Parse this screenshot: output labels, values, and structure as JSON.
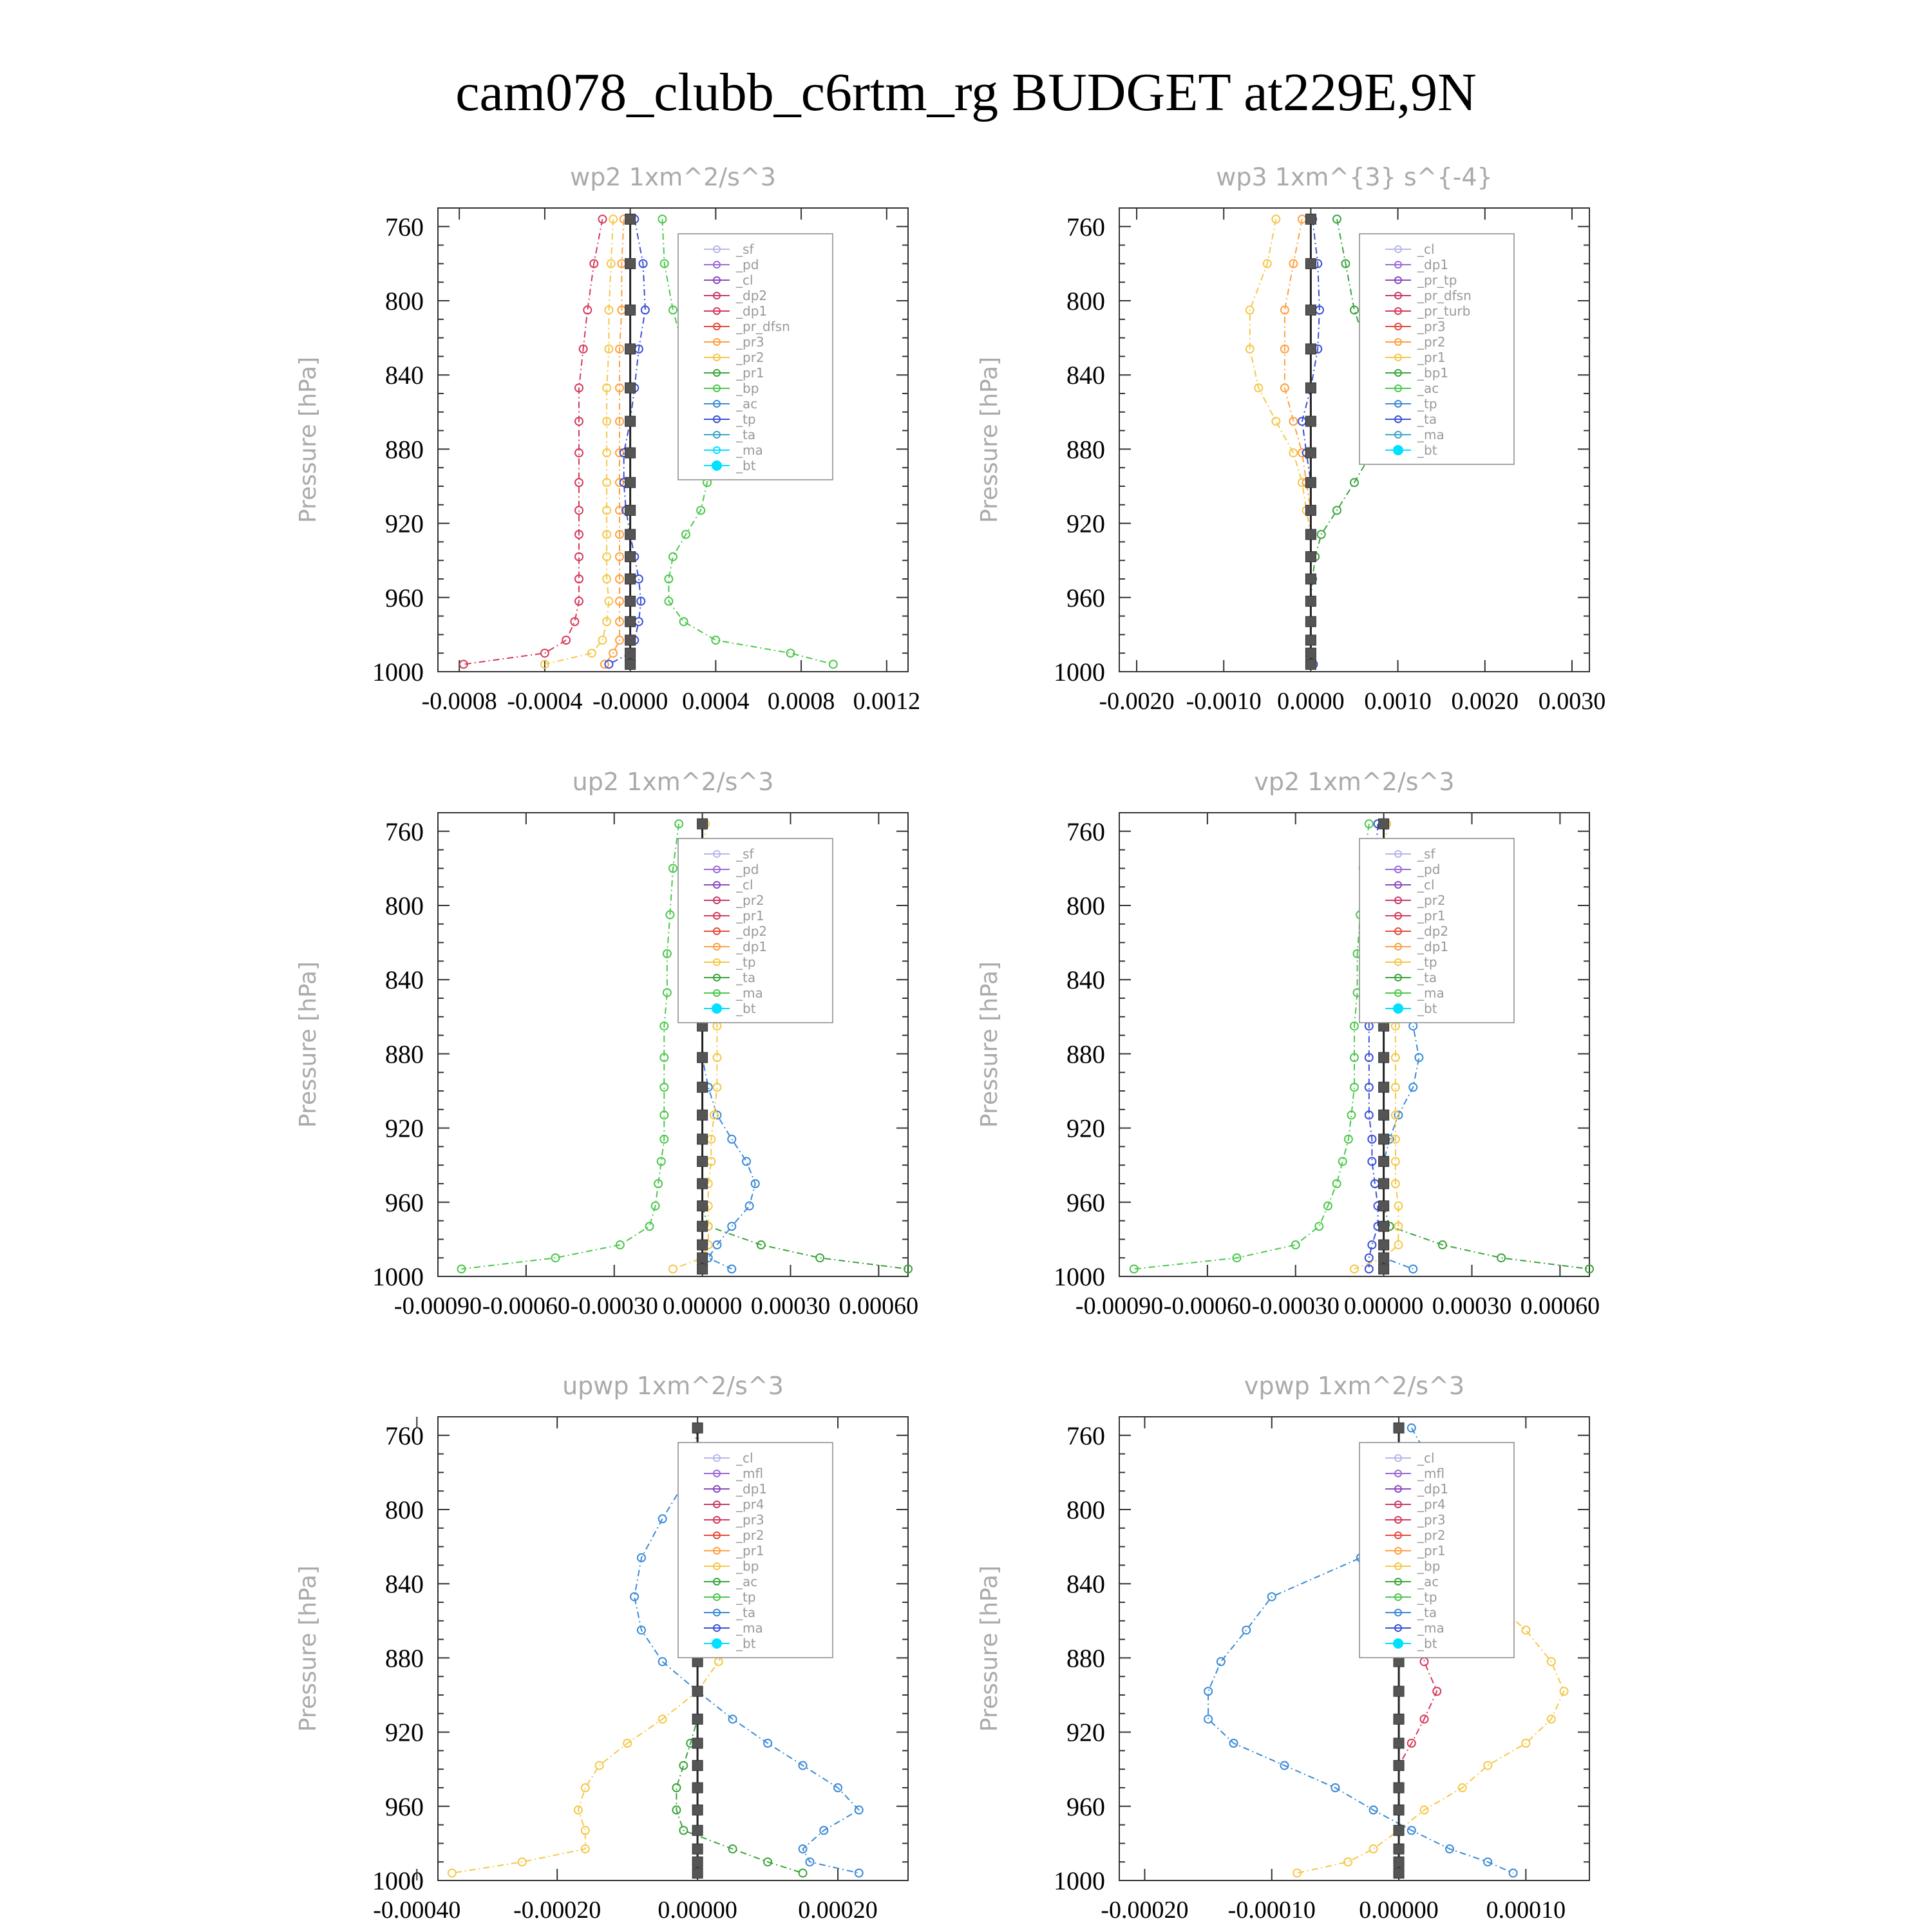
{
  "page": {
    "title": "cam078_clubb_c6rtm_rg  BUDGET at229E,9N"
  },
  "chart_data": [
    {
      "type": "line",
      "title": "wp2   1xm^2/s^3",
      "ylabel": "Pressure  [hPa]",
      "xlim": [
        -0.0009,
        0.0013
      ],
      "ylim": [
        750,
        1000
      ],
      "xticks": [
        "-0.0008",
        "-0.0004",
        "-0.0000",
        "0.0004",
        "0.0008",
        "0.0012"
      ],
      "xtick_values": [
        -0.0008,
        -0.0004,
        0,
        0.0004,
        0.0008,
        0.0012
      ],
      "yticks": [
        "760",
        "800",
        "840",
        "880",
        "920",
        "960",
        "1000"
      ],
      "pressure": [
        756,
        780,
        805,
        826,
        847,
        865,
        882,
        898,
        913,
        926,
        938,
        950,
        962,
        973,
        983,
        990,
        996
      ],
      "legend": [
        "_sf",
        "_pd",
        "_cl",
        "_dp2",
        "_dp1",
        "_pr_dfsn",
        "_pr3",
        "_pr2",
        "_pr1",
        "_bp",
        "_ac",
        "_tp",
        "_ta",
        "_ma",
        "_bt"
      ],
      "series": [
        {
          "name": "_dp1",
          "color": "#d63a5a",
          "values": [
            -0.00013,
            -0.00017,
            -0.0002,
            -0.00022,
            -0.00024,
            -0.00024,
            -0.00024,
            -0.00024,
            -0.00024,
            -0.00024,
            -0.00024,
            -0.00024,
            -0.00024,
            -0.00026,
            -0.0003,
            -0.0004,
            -0.00078
          ]
        },
        {
          "name": "_pr1",
          "color": "#f4c84a",
          "values": [
            -8e-05,
            -9e-05,
            -0.0001,
            -0.0001,
            -0.00011,
            -0.00011,
            -0.00011,
            -0.00011,
            -0.00011,
            -0.00011,
            -0.00011,
            -0.00011,
            -0.0001,
            -0.00011,
            -0.00013,
            -0.00018,
            -0.0004
          ]
        },
        {
          "name": "_pr3",
          "color": "#ffa040",
          "values": [
            -3e-05,
            -4e-05,
            -4e-05,
            -5e-05,
            -5e-05,
            -5e-05,
            -5e-05,
            -5e-05,
            -5e-05,
            -5e-05,
            -5e-05,
            -5e-05,
            -5e-05,
            -5e-05,
            -5e-05,
            -8e-05,
            -0.00012
          ]
        },
        {
          "name": "_bp",
          "color": "#4cc84c",
          "values": [
            0.00015,
            0.00016,
            0.0002,
            0.00025,
            0.00033,
            0.00037,
            0.00038,
            0.00036,
            0.00033,
            0.00026,
            0.0002,
            0.00018,
            0.00018,
            0.00025,
            0.0004,
            0.00075,
            0.00095
          ]
        },
        {
          "name": "_ta",
          "color": "#3a50d6",
          "values": [
            2e-05,
            6e-05,
            7e-05,
            4e-05,
            2e-05,
            0.0,
            -3e-05,
            -3e-05,
            -2e-05,
            0.0,
            2e-05,
            4e-05,
            5e-05,
            4e-05,
            2e-05,
            0.0,
            -0.0001
          ]
        },
        {
          "name": "_bt",
          "color": "#222222",
          "values": [
            0,
            0,
            0,
            0,
            0,
            0,
            0,
            0,
            0,
            0,
            0,
            0,
            0,
            0,
            0,
            0,
            0
          ]
        }
      ]
    },
    {
      "type": "line",
      "title": "wp3   1xm^{3} s^{-4}",
      "ylabel": "Pressure  [hPa]",
      "xlim": [
        -0.0022,
        0.0032
      ],
      "ylim": [
        750,
        1000
      ],
      "xticks": [
        "-0.0020",
        "-0.0010",
        "0.0000",
        "0.0010",
        "0.0020",
        "0.0030"
      ],
      "xtick_values": [
        -0.002,
        -0.001,
        0,
        0.001,
        0.002,
        0.003
      ],
      "yticks": [
        "760",
        "800",
        "840",
        "880",
        "920",
        "960",
        "1000"
      ],
      "pressure": [
        756,
        780,
        805,
        826,
        847,
        865,
        882,
        898,
        913,
        926,
        938,
        950,
        962,
        973,
        983,
        990,
        996
      ],
      "legend": [
        "_cl",
        "_dp1",
        "_pr_tp",
        "_pr_dfsn",
        "_pr_turb",
        "_pr3",
        "_pr2",
        "_pr1",
        "_bp1",
        "_ac",
        "_tp",
        "_ta",
        "_ma",
        "_bt"
      ],
      "series": [
        {
          "name": "_pr1",
          "color": "#f4c84a",
          "values": [
            -0.0004,
            -0.0005,
            -0.0007,
            -0.0007,
            -0.0006,
            -0.0004,
            -0.0002,
            -0.0001,
            -5e-05,
            0,
            0,
            0,
            0,
            0,
            0,
            0,
            0
          ]
        },
        {
          "name": "_pr2",
          "color": "#ffa040",
          "values": [
            -0.0001,
            -0.0002,
            -0.0003,
            -0.0003,
            -0.0003,
            -0.0002,
            -0.0001,
            -5e-05,
            0,
            0,
            0,
            0,
            0,
            0,
            0,
            0,
            0
          ]
        },
        {
          "name": "_bp1",
          "color": "#3aa43a",
          "values": [
            0.0003,
            0.0004,
            0.0005,
            0.00065,
            0.0008,
            0.0008,
            0.0007,
            0.0005,
            0.0003,
            0.00012,
            5e-05,
            2e-05,
            0,
            0,
            0,
            0,
            0
          ]
        },
        {
          "name": "_ta",
          "color": "#3a50d6",
          "values": [
            2e-05,
            8e-05,
            0.0001,
            8e-05,
            0.0,
            -0.0001,
            -5e-05,
            0,
            0,
            0,
            0,
            0,
            0,
            0,
            0,
            0,
            3e-05
          ]
        },
        {
          "name": "_bt",
          "color": "#222222",
          "values": [
            0,
            0,
            0,
            0,
            0,
            0,
            0,
            0,
            0,
            0,
            0,
            0,
            0,
            0,
            0,
            0,
            0
          ]
        }
      ]
    },
    {
      "type": "line",
      "title": "up2   1xm^2/s^3",
      "ylabel": "Pressure  [hPa]",
      "xlim": [
        -0.0009,
        0.0007
      ],
      "ylim": [
        750,
        1000
      ],
      "xticks": [
        "-0.00090",
        "-0.00060",
        "-0.00030",
        "0.00000",
        "0.00030",
        "0.00060"
      ],
      "xtick_values": [
        -0.0009,
        -0.0006,
        -0.0003,
        0,
        0.0003,
        0.0006
      ],
      "yticks": [
        "760",
        "800",
        "840",
        "880",
        "920",
        "960",
        "1000"
      ],
      "pressure": [
        756,
        780,
        805,
        826,
        847,
        865,
        882,
        898,
        913,
        926,
        938,
        950,
        962,
        973,
        983,
        990,
        996
      ],
      "legend": [
        "_sf",
        "_pd",
        "_cl",
        "_pr2",
        "_pr1",
        "_dp2",
        "_dp1",
        "_tp",
        "_ta",
        "_ma",
        "_bt"
      ],
      "series": [
        {
          "name": "_dp1",
          "color": "#4cc84c",
          "values": [
            -8e-05,
            -0.0001,
            -0.00011,
            -0.00012,
            -0.00012,
            -0.00013,
            -0.00013,
            -0.00013,
            -0.00013,
            -0.00013,
            -0.00014,
            -0.00015,
            -0.00016,
            -0.00018,
            -0.00028,
            -0.0005,
            -0.00082
          ]
        },
        {
          "name": "_dp2",
          "color": "#3aa43a",
          "values": [
            0,
            0,
            0,
            0,
            0,
            0,
            0,
            0,
            0,
            0,
            0,
            0,
            0,
            2e-05,
            0.0002,
            0.0004,
            0.0007
          ]
        },
        {
          "name": "_tp",
          "color": "#3a8ad6",
          "values": [
            0,
            0,
            0,
            0,
            0,
            0,
            0,
            2e-05,
            5e-05,
            0.0001,
            0.00015,
            0.00018,
            0.00016,
            0.0001,
            5e-05,
            2e-05,
            0.0001
          ]
        },
        {
          "name": "_pr1",
          "color": "#f4c84a",
          "values": [
            1e-05,
            1e-05,
            2e-05,
            3e-05,
            4e-05,
            5e-05,
            5e-05,
            5e-05,
            4e-05,
            3e-05,
            3e-05,
            2e-05,
            2e-05,
            2e-05,
            2e-05,
            0,
            -0.0001
          ]
        },
        {
          "name": "_bt",
          "color": "#222222",
          "values": [
            0,
            0,
            0,
            0,
            0,
            0,
            0,
            0,
            0,
            0,
            0,
            0,
            0,
            0,
            0,
            0,
            0
          ]
        }
      ]
    },
    {
      "type": "line",
      "title": "vp2   1xm^2/s^3",
      "ylabel": "Pressure  [hPa]",
      "xlim": [
        -0.0009,
        0.0007
      ],
      "ylim": [
        750,
        1000
      ],
      "xticks": [
        "-0.00090",
        "-0.00060",
        "-0.00030",
        "0.00000",
        "0.00030",
        "0.00060"
      ],
      "xtick_values": [
        -0.0009,
        -0.0006,
        -0.0003,
        0,
        0.0003,
        0.0006
      ],
      "yticks": [
        "760",
        "800",
        "840",
        "880",
        "920",
        "960",
        "1000"
      ],
      "pressure": [
        756,
        780,
        805,
        826,
        847,
        865,
        882,
        898,
        913,
        926,
        938,
        950,
        962,
        973,
        983,
        990,
        996
      ],
      "legend": [
        "_sf",
        "_pd",
        "_cl",
        "_pr2",
        "_pr1",
        "_dp2",
        "_dp1",
        "_tp",
        "_ta",
        "_ma",
        "_bt"
      ],
      "series": [
        {
          "name": "_dp1",
          "color": "#4cc84c",
          "values": [
            -5e-05,
            -7e-05,
            -8e-05,
            -9e-05,
            -9e-05,
            -0.0001,
            -0.0001,
            -0.0001,
            -0.00011,
            -0.00012,
            -0.00014,
            -0.00016,
            -0.00019,
            -0.00022,
            -0.0003,
            -0.0005,
            -0.00085
          ]
        },
        {
          "name": "_dp2",
          "color": "#3aa43a",
          "values": [
            0,
            0,
            0,
            0,
            0,
            0,
            0,
            0,
            0,
            0,
            0,
            0,
            0,
            2e-05,
            0.0002,
            0.0004,
            0.0007
          ]
        },
        {
          "name": "_tp",
          "color": "#3a8ad6",
          "values": [
            0,
            0,
            0,
            0,
            5e-05,
            0.0001,
            0.00012,
            0.0001,
            5e-05,
            2e-05,
            0,
            0,
            0,
            0,
            0,
            0,
            0.0001
          ]
        },
        {
          "name": "_ta",
          "color": "#3a50d6",
          "values": [
            -2e-05,
            -3e-05,
            -4e-05,
            -4e-05,
            -5e-05,
            -5e-05,
            -5e-05,
            -5e-05,
            -5e-05,
            -4e-05,
            -4e-05,
            -3e-05,
            -2e-05,
            -2e-05,
            -4e-05,
            -5e-05,
            -5e-05
          ]
        },
        {
          "name": "_pr1",
          "color": "#f4c84a",
          "values": [
            1e-05,
            1e-05,
            2e-05,
            3e-05,
            4e-05,
            4e-05,
            4e-05,
            4e-05,
            4e-05,
            4e-05,
            4e-05,
            4e-05,
            5e-05,
            5e-05,
            5e-05,
            0,
            -0.0001
          ]
        },
        {
          "name": "_bt",
          "color": "#222222",
          "values": [
            0,
            0,
            0,
            0,
            0,
            0,
            0,
            0,
            0,
            0,
            0,
            0,
            0,
            0,
            0,
            0,
            0
          ]
        }
      ]
    },
    {
      "type": "line",
      "title": "upwp   1xm^2/s^3",
      "ylabel": "Pressure  [hPa]",
      "xlim": [
        -0.00037,
        0.0003
      ],
      "ylim": [
        750,
        1000
      ],
      "xticks": [
        "-0.00040",
        "-0.00020",
        "0.00000",
        "0.00020"
      ],
      "xtick_values": [
        -0.0004,
        -0.0002,
        0,
        0.0002
      ],
      "yticks": [
        "760",
        "800",
        "840",
        "880",
        "920",
        "960",
        "1000"
      ],
      "pressure": [
        756,
        780,
        805,
        826,
        847,
        865,
        882,
        898,
        913,
        926,
        938,
        950,
        962,
        973,
        983,
        990,
        996
      ],
      "legend": [
        "_cl",
        "_mfl",
        "_dp1",
        "_pr4",
        "_pr3",
        "_pr2",
        "_pr1",
        "_bp",
        "_ac",
        "_tp",
        "_ta",
        "_ma",
        "_bt"
      ],
      "series": [
        {
          "name": "_pr1",
          "color": "#f4c84a",
          "values": [
            0,
            1e-05,
            2e-05,
            4e-05,
            7e-05,
            5e-05,
            3e-05,
            0,
            -5e-05,
            -0.0001,
            -0.00014,
            -0.00016,
            -0.00017,
            -0.00016,
            -0.00016,
            -0.00025,
            -0.00035
          ]
        },
        {
          "name": "_tp",
          "color": "#3a8ad6",
          "values": [
            0,
            -1e-05,
            -5e-05,
            -8e-05,
            -9e-05,
            -8e-05,
            -5e-05,
            0,
            5e-05,
            0.0001,
            0.00015,
            0.0002,
            0.00023,
            0.00018,
            0.00015,
            0.00016,
            0.00023
          ]
        },
        {
          "name": "_bp",
          "color": "#3aa43a",
          "values": [
            0,
            0,
            0,
            0,
            0,
            0,
            0,
            0,
            0,
            -1e-05,
            -2e-05,
            -3e-05,
            -3e-05,
            -2e-05,
            5e-05,
            0.0001,
            0.00015
          ]
        },
        {
          "name": "_bt",
          "color": "#222222",
          "values": [
            0,
            0,
            0,
            0,
            0,
            0,
            0,
            0,
            0,
            0,
            0,
            0,
            0,
            0,
            0,
            0,
            0
          ]
        }
      ]
    },
    {
      "type": "line",
      "title": "vpwp   1xm^2/s^3",
      "ylabel": "Pressure  [hPa]",
      "xlim": [
        -0.00022,
        0.00015
      ],
      "ylim": [
        750,
        1000
      ],
      "xticks": [
        "-0.00020",
        "-0.00010",
        "0.00000",
        "0.00010"
      ],
      "xtick_values": [
        -0.0002,
        -0.0001,
        0,
        0.0001
      ],
      "yticks": [
        "760",
        "800",
        "840",
        "880",
        "920",
        "960",
        "1000"
      ],
      "pressure": [
        756,
        780,
        805,
        826,
        847,
        865,
        882,
        898,
        913,
        926,
        938,
        950,
        962,
        973,
        983,
        990,
        996
      ],
      "legend": [
        "_cl",
        "_mfl",
        "_dp1",
        "_pr4",
        "_pr3",
        "_pr2",
        "_pr1",
        "_bp",
        "_ac",
        "_tp",
        "_ta",
        "_ma",
        "_bt"
      ],
      "series": [
        {
          "name": "_pr1",
          "color": "#f4c84a",
          "values": [
            0,
            0,
            1e-05,
            5e-05,
            7e-05,
            0.0001,
            0.00012,
            0.00013,
            0.00012,
            0.0001,
            7e-05,
            5e-05,
            2e-05,
            0,
            -2e-05,
            -4e-05,
            -8e-05
          ]
        },
        {
          "name": "_tp",
          "color": "#3a8ad6",
          "values": [
            1e-05,
            3e-05,
            1e-05,
            -3e-05,
            -0.0001,
            -0.00012,
            -0.00014,
            -0.00015,
            -0.00015,
            -0.00013,
            -9e-05,
            -5e-05,
            -2e-05,
            1e-05,
            4e-05,
            7e-05,
            9e-05
          ]
        },
        {
          "name": "_dp1",
          "color": "#d63a5a",
          "values": [
            0,
            0,
            0,
            0,
            1e-05,
            2e-05,
            2e-05,
            3e-05,
            2e-05,
            1e-05,
            0,
            0,
            0,
            0,
            0,
            0,
            0
          ]
        },
        {
          "name": "_bt",
          "color": "#222222",
          "values": [
            0,
            0,
            0,
            0,
            0,
            0,
            0,
            0,
            0,
            0,
            0,
            0,
            0,
            0,
            0,
            0,
            0
          ]
        }
      ]
    }
  ]
}
